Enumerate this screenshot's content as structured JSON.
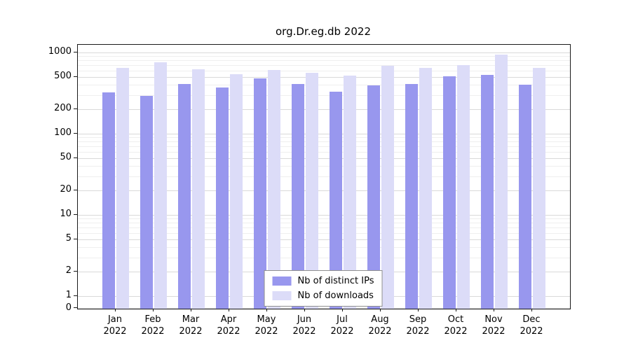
{
  "chart_data": {
    "type": "bar",
    "title": "org.Dr.eg.db 2022",
    "categories": [
      "Jan 2022",
      "Feb 2022",
      "Mar 2022",
      "Apr 2022",
      "May 2022",
      "Jun 2022",
      "Jul 2022",
      "Aug 2022",
      "Sep 2022",
      "Oct 2022",
      "Nov 2022",
      "Dec 2022"
    ],
    "series": [
      {
        "name": "Nb of distinct IPs",
        "color": "#9897ee",
        "values": [
          320,
          290,
          410,
          370,
          480,
          410,
          330,
          390,
          410,
          510,
          530,
          400
        ]
      },
      {
        "name": "Nb of downloads",
        "color": "#dcdcf8",
        "values": [
          650,
          760,
          620,
          540,
          610,
          560,
          520,
          690,
          640,
          700,
          950,
          640
        ]
      }
    ],
    "y_ticks": [
      0,
      1,
      2,
      5,
      10,
      20,
      50,
      100,
      200,
      500,
      1000
    ],
    "y_scale": "log (symlog, 0 baseline)",
    "ylim": [
      0,
      1100
    ],
    "xlabel": "",
    "ylabel": "",
    "grid": true,
    "legend_position": "inside-bottom-center"
  }
}
